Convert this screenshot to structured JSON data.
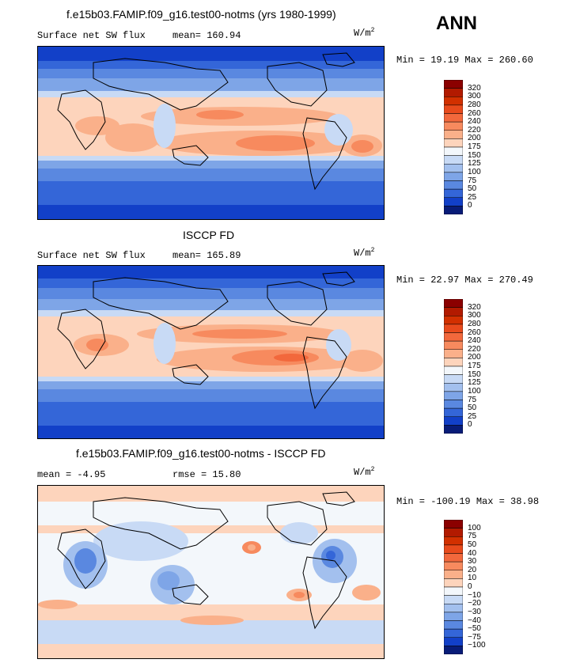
{
  "season": "ANN",
  "panels": [
    {
      "title": "f.e15b03.FAMIP.f09_g16.test00-notms (yrs 1980-1999)",
      "left_label": "Surface net SW flux",
      "stat_label": "mean=",
      "stat_value": "160.94",
      "units": "W/m",
      "units_exp": "2",
      "minmax": "Min =  19.19 Max = 260.60",
      "colorbar": {
        "labels": [
          "320",
          "300",
          "280",
          "260",
          "240",
          "220",
          "200",
          "175",
          "150",
          "125",
          "100",
          "75",
          "50",
          "25",
          "0"
        ],
        "colors": [
          "#8b0000",
          "#b21a00",
          "#d23000",
          "#e84a1c",
          "#f2683c",
          "#f78a5e",
          "#fab08a",
          "#fdd4bc",
          "#f3f7fb",
          "#c8daf5",
          "#a3c0ee",
          "#7ea5e7",
          "#5a88e0",
          "#3466d8",
          "#1240c8",
          "#081c78"
        ]
      }
    },
    {
      "title": "ISCCP FD",
      "left_label": "Surface net SW flux",
      "stat_label": "mean=",
      "stat_value": "165.89",
      "units": "W/m",
      "units_exp": "2",
      "minmax": "Min =  22.97 Max = 270.49",
      "colorbar": {
        "labels": [
          "320",
          "300",
          "280",
          "260",
          "240",
          "220",
          "200",
          "175",
          "150",
          "125",
          "100",
          "75",
          "50",
          "25",
          "0"
        ],
        "colors": [
          "#8b0000",
          "#b21a00",
          "#d23000",
          "#e84a1c",
          "#f2683c",
          "#f78a5e",
          "#fab08a",
          "#fdd4bc",
          "#f3f7fb",
          "#c8daf5",
          "#a3c0ee",
          "#7ea5e7",
          "#5a88e0",
          "#3466d8",
          "#1240c8",
          "#081c78"
        ]
      }
    },
    {
      "title": "f.e15b03.FAMIP.f09_g16.test00-notms - ISCCP FD",
      "left_label": "mean =   -4.95",
      "stat_label": "rmse =",
      "stat_value": "15.80",
      "units": "W/m",
      "units_exp": "2",
      "minmax": "Min = -100.19 Max =  38.98",
      "colorbar": {
        "labels": [
          "100",
          "75",
          "50",
          "40",
          "30",
          "20",
          "10",
          "0",
          "−10",
          "−20",
          "−30",
          "−40",
          "−50",
          "−75",
          "−100"
        ],
        "colors": [
          "#8b0000",
          "#b21a00",
          "#d23000",
          "#e84a1c",
          "#f2683c",
          "#f78a5e",
          "#fab08a",
          "#fdd4bc",
          "#f3f7fb",
          "#c8daf5",
          "#a3c0ee",
          "#7ea5e7",
          "#5a88e0",
          "#3466d8",
          "#1240c8",
          "#081c78"
        ]
      }
    }
  ]
}
